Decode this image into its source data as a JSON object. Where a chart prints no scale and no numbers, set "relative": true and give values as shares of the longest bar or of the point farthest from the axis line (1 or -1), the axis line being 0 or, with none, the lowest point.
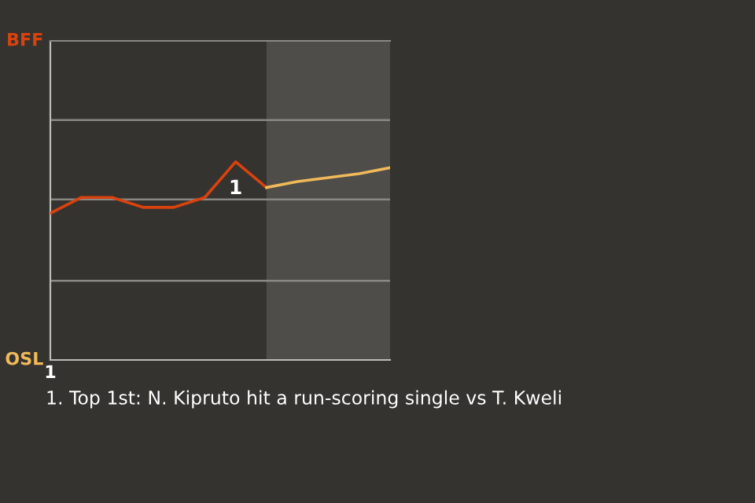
{
  "chart_data": {
    "type": "line",
    "relative": true,
    "categories": [
      null,
      null,
      null,
      null,
      null,
      null,
      null,
      null,
      null,
      null,
      null,
      null
    ],
    "series": [
      {
        "color": "#d9420f",
        "values": [
          0.74,
          0.82,
          0.82,
          0.77,
          0.77,
          0.82,
          1,
          0.87,
          null,
          null,
          null,
          null
        ]
      },
      {
        "color": "#f0b95a",
        "values": [
          null,
          null,
          null,
          null,
          null,
          null,
          null,
          0.87,
          0.9,
          0.92,
          0.94,
          0.97
        ]
      }
    ],
    "ref_lines": [
      {
        "axis": "y",
        "value": 0.4,
        "color": "#8a8884"
      },
      {
        "axis": "y",
        "value": 0.81,
        "color": "#8a8884"
      },
      {
        "axis": "y",
        "value": 1.21,
        "color": "#8a8884"
      }
    ],
    "marker": "none",
    "line_style": "solid",
    "annotations": [
      {
        "text": "1",
        "y": 1
      },
      "1. Top 1st: N. Kipruto hit a run-scoring single vs T. Kweli",
      "BFF",
      "OSL",
      "1"
    ]
  }
}
